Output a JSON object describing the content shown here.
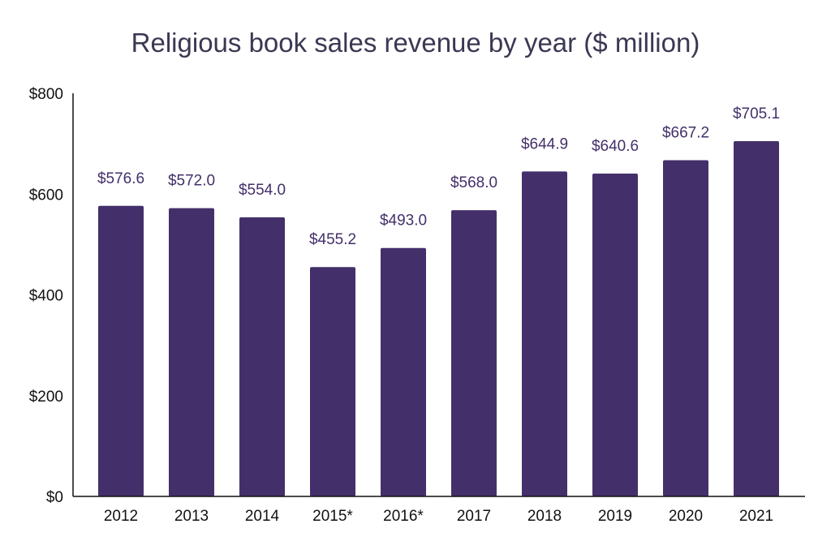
{
  "chart_data": {
    "type": "bar",
    "title": "Religious book sales revenue by year ($ million)",
    "categories": [
      "2012",
      "2013",
      "2014",
      "2015*",
      "2016*",
      "2017",
      "2018",
      "2019",
      "2020",
      "2021"
    ],
    "values": [
      576.6,
      572.0,
      554.0,
      455.2,
      493.0,
      568.0,
      644.9,
      640.6,
      667.2,
      705.1
    ],
    "data_labels": [
      "$576.6",
      "$572.0",
      "$554.0",
      "$455.2",
      "$493.0",
      "$568.0",
      "$644.9",
      "$640.6",
      "$667.2",
      "$705.1"
    ],
    "y_ticks": [
      0,
      200,
      400,
      600,
      800
    ],
    "y_tick_labels": [
      "$0",
      "$200",
      "$400",
      "$600",
      "$800"
    ],
    "ylim": [
      0,
      800
    ],
    "xlabel": "",
    "ylabel": "",
    "grid": false,
    "colors": {
      "bar": "#43306a",
      "data_label": "#43306a",
      "title": "#3a3853",
      "axis": "#111111"
    }
  }
}
